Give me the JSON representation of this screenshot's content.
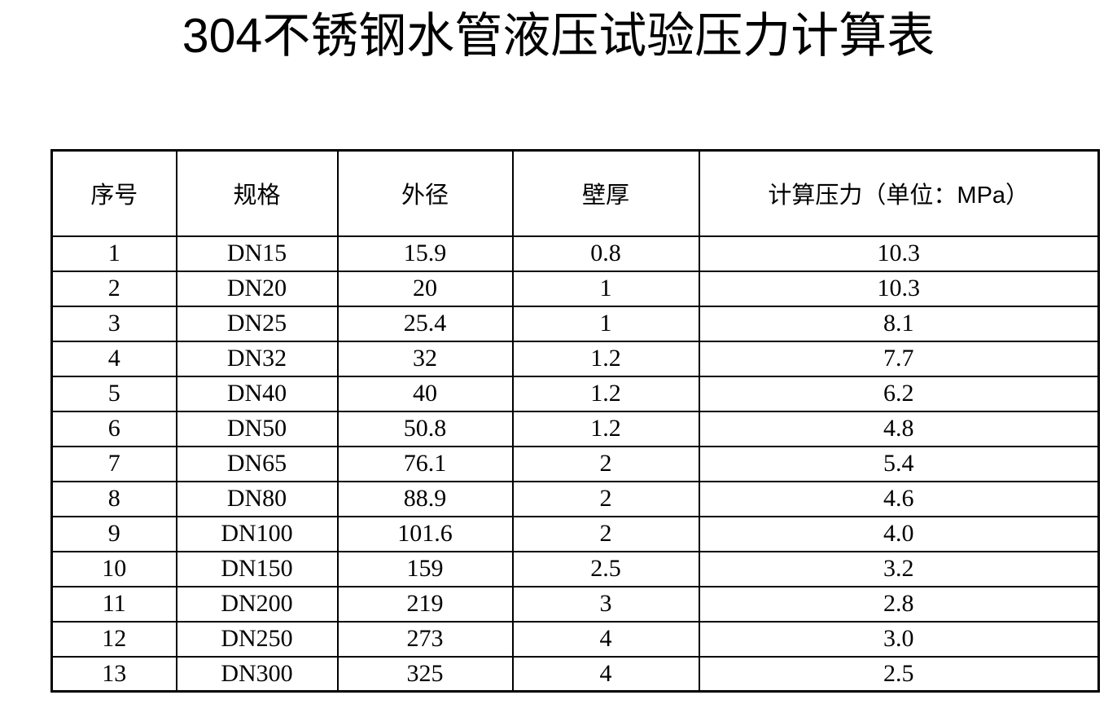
{
  "page": {
    "title": "304不锈钢水管液压试验压力计算表"
  },
  "table": {
    "columns": [
      "序号",
      "规格",
      "外径",
      "壁厚",
      "计算压力（单位：MPa）"
    ],
    "rows": [
      [
        "1",
        "DN15",
        "15.9",
        "0.8",
        "10.3"
      ],
      [
        "2",
        "DN20",
        "20",
        "1",
        "10.3"
      ],
      [
        "3",
        "DN25",
        "25.4",
        "1",
        "8.1"
      ],
      [
        "4",
        "DN32",
        "32",
        "1.2",
        "7.7"
      ],
      [
        "5",
        "DN40",
        "40",
        "1.2",
        "6.2"
      ],
      [
        "6",
        "DN50",
        "50.8",
        "1.2",
        "4.8"
      ],
      [
        "7",
        "DN65",
        "76.1",
        "2",
        "5.4"
      ],
      [
        "8",
        "DN80",
        "88.9",
        "2",
        "4.6"
      ],
      [
        "9",
        "DN100",
        "101.6",
        "2",
        "4.0"
      ],
      [
        "10",
        "DN150",
        "159",
        "2.5",
        "3.2"
      ],
      [
        "11",
        "DN200",
        "219",
        "3",
        "2.8"
      ],
      [
        "12",
        "DN250",
        "273",
        "4",
        "3.0"
      ],
      [
        "13",
        "DN300",
        "325",
        "4",
        "2.5"
      ]
    ]
  }
}
